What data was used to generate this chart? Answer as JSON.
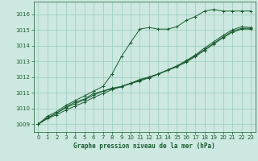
{
  "xlabel": "Graphe pression niveau de la mer (hPa)",
  "xlim": [
    -0.5,
    23.5
  ],
  "ylim": [
    1008.5,
    1016.8
  ],
  "yticks": [
    1009,
    1010,
    1011,
    1012,
    1013,
    1014,
    1015,
    1016
  ],
  "xticks": [
    0,
    1,
    2,
    3,
    4,
    5,
    6,
    7,
    8,
    9,
    10,
    11,
    12,
    13,
    14,
    15,
    16,
    17,
    18,
    19,
    20,
    21,
    22,
    23
  ],
  "background_color": "#cce8e0",
  "grid_color": "#99ccbb",
  "line_color": "#1a5c30",
  "series1_y": [
    1009.0,
    1009.5,
    1009.8,
    1010.2,
    1010.5,
    1010.8,
    1011.1,
    1011.4,
    1012.2,
    1013.3,
    1014.2,
    1015.05,
    1015.15,
    1015.05,
    1015.05,
    1015.2,
    1015.6,
    1015.85,
    1016.2,
    1016.3,
    1016.2,
    1016.2,
    1016.2,
    1016.2
  ],
  "series2_y": [
    1009.0,
    1009.4,
    1009.7,
    1010.1,
    1010.4,
    1010.6,
    1010.95,
    1011.1,
    1011.3,
    1011.4,
    1011.6,
    1011.85,
    1012.0,
    1012.2,
    1012.45,
    1012.7,
    1013.05,
    1013.4,
    1013.85,
    1014.25,
    1014.65,
    1015.0,
    1015.2,
    1015.15
  ],
  "series3_y": [
    1009.0,
    1009.4,
    1009.7,
    1010.05,
    1010.3,
    1010.55,
    1010.85,
    1011.1,
    1011.25,
    1011.4,
    1011.6,
    1011.8,
    1012.0,
    1012.2,
    1012.45,
    1012.7,
    1013.0,
    1013.35,
    1013.75,
    1014.15,
    1014.55,
    1014.9,
    1015.1,
    1015.1
  ],
  "series4_y": [
    1009.0,
    1009.35,
    1009.6,
    1009.9,
    1010.15,
    1010.4,
    1010.7,
    1010.95,
    1011.2,
    1011.38,
    1011.58,
    1011.75,
    1011.95,
    1012.18,
    1012.42,
    1012.65,
    1012.95,
    1013.3,
    1013.7,
    1014.1,
    1014.5,
    1014.85,
    1015.05,
    1015.05
  ]
}
